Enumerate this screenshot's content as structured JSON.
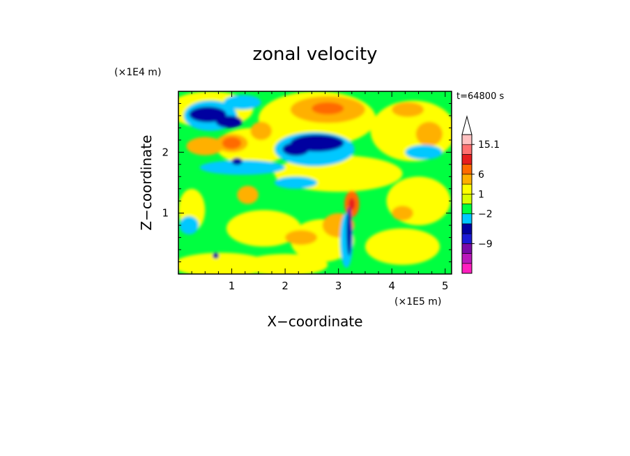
{
  "chart_data": {
    "type": "heatmap",
    "title": "zonal velocity",
    "xlabel": "X−coordinate",
    "ylabel": "Z−coordinate",
    "x_unit": "(×1E5 m)",
    "y_unit": "(×1E4 m)",
    "time_label": "t=64800 s",
    "xlim": [
      0,
      5.12
    ],
    "ylim": [
      0,
      3.0
    ],
    "x_ticks": [
      1,
      2,
      3,
      4,
      5
    ],
    "y_ticks": [
      1,
      2
    ],
    "x_tick_labels": [
      "1",
      "2",
      "3",
      "4",
      "5"
    ],
    "y_tick_labels": [
      "1",
      "2"
    ],
    "colorbar": {
      "colors": [
        "#ff1fbf",
        "#bb18bb",
        "#7a0aa8",
        "#1a1ad6",
        "#0000a0",
        "#00c8ff",
        "#00ff40",
        "#d8ff00",
        "#ffff00",
        "#ffb000",
        "#ff6a00",
        "#e61e1e",
        "#ff7070",
        "#ffc0c0"
      ],
      "tick_labels": [
        "−9",
        "−2",
        "1",
        "6",
        "15.1"
      ]
    },
    "field": {
      "background": "#00ff40",
      "regions": [
        {
          "color": "#ffff00",
          "cx": 0.6,
          "cy": 2.7,
          "rx": 0.8,
          "ry": 0.3
        },
        {
          "color": "#ffff00",
          "cx": 2.6,
          "cy": 2.55,
          "rx": 1.1,
          "ry": 0.45
        },
        {
          "color": "#ffff00",
          "cx": 4.4,
          "cy": 2.35,
          "rx": 0.8,
          "ry": 0.5
        },
        {
          "color": "#ffff00",
          "cx": 1.4,
          "cy": 2.1,
          "rx": 0.7,
          "ry": 0.3
        },
        {
          "color": "#ffff00",
          "cx": 3.0,
          "cy": 1.65,
          "rx": 1.2,
          "ry": 0.3
        },
        {
          "color": "#ffff00",
          "cx": 4.5,
          "cy": 1.2,
          "rx": 0.6,
          "ry": 0.4
        },
        {
          "color": "#ffff00",
          "cx": 1.6,
          "cy": 0.75,
          "rx": 0.7,
          "ry": 0.3
        },
        {
          "color": "#ffff00",
          "cx": 2.7,
          "cy": 0.55,
          "rx": 0.6,
          "ry": 0.35
        },
        {
          "color": "#ffff00",
          "cx": 4.2,
          "cy": 0.45,
          "rx": 0.7,
          "ry": 0.3
        },
        {
          "color": "#ffff00",
          "cx": 0.8,
          "cy": 0.15,
          "rx": 0.9,
          "ry": 0.2
        },
        {
          "color": "#ffff00",
          "cx": 2.0,
          "cy": 0.15,
          "rx": 0.8,
          "ry": 0.18
        },
        {
          "color": "#ffff00",
          "cx": 0.25,
          "cy": 1.05,
          "rx": 0.25,
          "ry": 0.35
        },
        {
          "color": "#ffb000",
          "cx": 2.8,
          "cy": 2.7,
          "rx": 0.7,
          "ry": 0.22
        },
        {
          "color": "#ffb000",
          "cx": 0.5,
          "cy": 2.1,
          "rx": 0.35,
          "ry": 0.15
        },
        {
          "color": "#ffb000",
          "cx": 1.0,
          "cy": 2.15,
          "rx": 0.3,
          "ry": 0.15
        },
        {
          "color": "#ffb000",
          "cx": 1.55,
          "cy": 2.35,
          "rx": 0.2,
          "ry": 0.15
        },
        {
          "color": "#ffb000",
          "cx": 4.7,
          "cy": 2.3,
          "rx": 0.25,
          "ry": 0.2
        },
        {
          "color": "#ffb000",
          "cx": 4.3,
          "cy": 2.7,
          "rx": 0.3,
          "ry": 0.12
        },
        {
          "color": "#ffb000",
          "cx": 3.0,
          "cy": 0.8,
          "rx": 0.3,
          "ry": 0.2
        },
        {
          "color": "#ffb000",
          "cx": 2.3,
          "cy": 0.6,
          "rx": 0.3,
          "ry": 0.12
        },
        {
          "color": "#ffb000",
          "cx": 1.3,
          "cy": 1.3,
          "rx": 0.2,
          "ry": 0.15
        },
        {
          "color": "#ffb000",
          "cx": 4.2,
          "cy": 1.0,
          "rx": 0.2,
          "ry": 0.12
        },
        {
          "color": "#ff6a00",
          "cx": 1.0,
          "cy": 2.15,
          "rx": 0.18,
          "ry": 0.1
        },
        {
          "color": "#ff6a00",
          "cx": 2.8,
          "cy": 2.72,
          "rx": 0.3,
          "ry": 0.1
        },
        {
          "color": "#ff6a00",
          "cx": 3.25,
          "cy": 1.15,
          "rx": 0.14,
          "ry": 0.22
        },
        {
          "color": "#e61e1e",
          "cx": 3.25,
          "cy": 1.15,
          "rx": 0.06,
          "ry": 0.1
        },
        {
          "color": "#00c8ff",
          "cx": 1.2,
          "cy": 1.75,
          "rx": 0.8,
          "ry": 0.12
        },
        {
          "color": "#00c8ff",
          "cx": 2.2,
          "cy": 1.5,
          "rx": 0.4,
          "ry": 0.1
        },
        {
          "color": "#00c8ff",
          "cx": 2.55,
          "cy": 2.05,
          "rx": 0.75,
          "ry": 0.28
        },
        {
          "color": "#00c8ff",
          "cx": 0.6,
          "cy": 2.6,
          "rx": 0.5,
          "ry": 0.25
        },
        {
          "color": "#00c8ff",
          "cx": 1.2,
          "cy": 2.82,
          "rx": 0.35,
          "ry": 0.12
        },
        {
          "color": "#00c8ff",
          "cx": 4.6,
          "cy": 2.0,
          "rx": 0.35,
          "ry": 0.12
        },
        {
          "color": "#00c8ff",
          "cx": 3.15,
          "cy": 0.55,
          "rx": 0.12,
          "ry": 0.45
        },
        {
          "color": "#00c8ff",
          "cx": 0.2,
          "cy": 0.8,
          "rx": 0.18,
          "ry": 0.15
        },
        {
          "color": "#0000a0",
          "cx": 0.55,
          "cy": 2.62,
          "rx": 0.35,
          "ry": 0.13
        },
        {
          "color": "#0000a0",
          "cx": 0.95,
          "cy": 2.5,
          "rx": 0.25,
          "ry": 0.1
        },
        {
          "color": "#0000a0",
          "cx": 2.6,
          "cy": 2.15,
          "rx": 0.5,
          "ry": 0.14
        },
        {
          "color": "#0000a0",
          "cx": 2.2,
          "cy": 2.05,
          "rx": 0.25,
          "ry": 0.11
        },
        {
          "color": "#0000a0",
          "cx": 3.2,
          "cy": 0.7,
          "rx": 0.05,
          "ry": 0.4
        },
        {
          "color": "#0000a0",
          "cx": 1.1,
          "cy": 1.85,
          "rx": 0.1,
          "ry": 0.06
        },
        {
          "color": "#0000a0",
          "cx": 0.7,
          "cy": 0.3,
          "rx": 0.06,
          "ry": 0.05
        }
      ]
    }
  }
}
